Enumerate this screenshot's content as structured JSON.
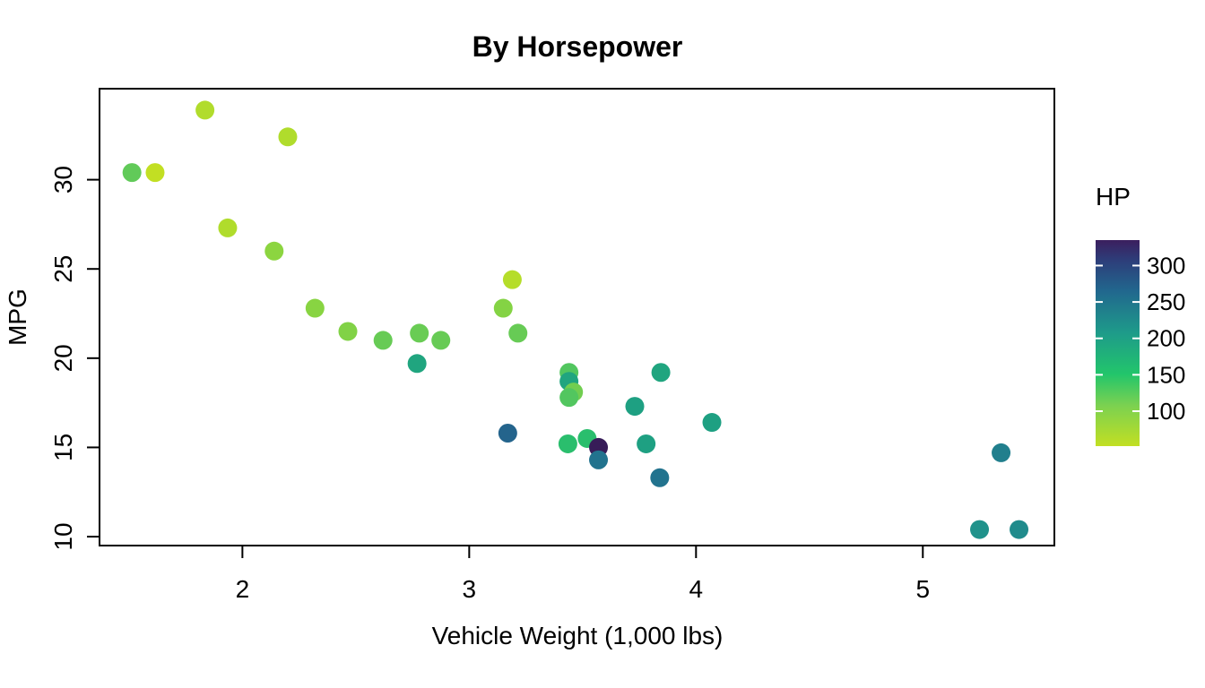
{
  "chart_data": {
    "type": "scatter",
    "title": "By Horsepower",
    "xlabel": "Vehicle Weight (1,000 lbs)",
    "ylabel": "MPG",
    "xlim": [
      1.37,
      5.58
    ],
    "ylim": [
      9.5,
      35.1
    ],
    "xticks": [
      2,
      3,
      4,
      5
    ],
    "yticks": [
      10,
      15,
      20,
      25,
      30
    ],
    "grid": false,
    "legend": {
      "title": "HP",
      "placement": "right",
      "min": 52,
      "max": 335,
      "ticks": [
        100,
        150,
        200,
        250,
        300
      ],
      "colors": [
        "#B8DE29",
        "#20A386",
        "#33638D",
        "#481567",
        "#440154"
      ]
    },
    "color_variable": "HP",
    "points": [
      {
        "x": 1.835,
        "y": 33.9,
        "hp": 65
      },
      {
        "x": 2.2,
        "y": 32.4,
        "hp": 66
      },
      {
        "x": 1.513,
        "y": 30.4,
        "hp": 113
      },
      {
        "x": 1.615,
        "y": 30.4,
        "hp": 52
      },
      {
        "x": 1.935,
        "y": 27.3,
        "hp": 66
      },
      {
        "x": 2.14,
        "y": 26.0,
        "hp": 91
      },
      {
        "x": 3.19,
        "y": 24.4,
        "hp": 62
      },
      {
        "x": 2.32,
        "y": 22.8,
        "hp": 93
      },
      {
        "x": 3.15,
        "y": 22.8,
        "hp": 95
      },
      {
        "x": 2.465,
        "y": 21.5,
        "hp": 97
      },
      {
        "x": 3.215,
        "y": 21.4,
        "hp": 110
      },
      {
        "x": 2.78,
        "y": 21.4,
        "hp": 109
      },
      {
        "x": 2.62,
        "y": 21.0,
        "hp": 110
      },
      {
        "x": 2.875,
        "y": 21.0,
        "hp": 110
      },
      {
        "x": 2.77,
        "y": 19.7,
        "hp": 175
      },
      {
        "x": 3.44,
        "y": 19.2,
        "hp": 123
      },
      {
        "x": 3.845,
        "y": 19.2,
        "hp": 175
      },
      {
        "x": 3.44,
        "y": 18.7,
        "hp": 175
      },
      {
        "x": 3.46,
        "y": 18.1,
        "hp": 105
      },
      {
        "x": 3.44,
        "y": 17.8,
        "hp": 123
      },
      {
        "x": 3.73,
        "y": 17.3,
        "hp": 180
      },
      {
        "x": 4.07,
        "y": 16.4,
        "hp": 180
      },
      {
        "x": 3.17,
        "y": 15.8,
        "hp": 264
      },
      {
        "x": 3.52,
        "y": 15.5,
        "hp": 150
      },
      {
        "x": 3.435,
        "y": 15.2,
        "hp": 150
      },
      {
        "x": 3.78,
        "y": 15.2,
        "hp": 180
      },
      {
        "x": 3.57,
        "y": 15.0,
        "hp": 335
      },
      {
        "x": 5.345,
        "y": 14.7,
        "hp": 230
      },
      {
        "x": 3.57,
        "y": 14.3,
        "hp": 245
      },
      {
        "x": 3.84,
        "y": 13.3,
        "hp": 245
      },
      {
        "x": 5.25,
        "y": 10.4,
        "hp": 205
      },
      {
        "x": 5.424,
        "y": 10.4,
        "hp": 215
      }
    ]
  }
}
